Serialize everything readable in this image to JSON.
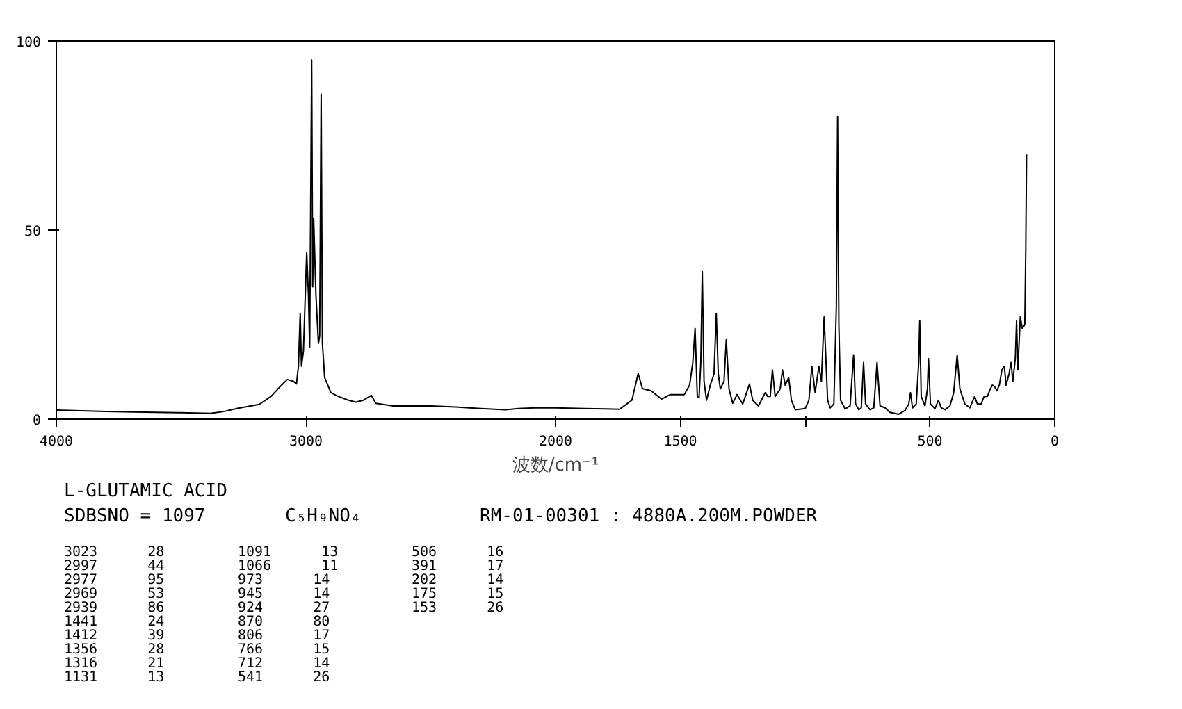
{
  "chart_data": {
    "type": "line",
    "title": "L-GLUTAMIC ACID",
    "xlabel": "波数/cm⁻¹",
    "xlim": [
      4000,
      0
    ],
    "ylim": [
      0,
      100
    ],
    "xticks": [
      4000,
      3000,
      2000,
      1500,
      {
        "value": 1000,
        "label": null
      },
      500,
      0
    ],
    "yticks": [
      0,
      50,
      100
    ],
    "series": [
      {
        "color": "#000000",
        "x": [
          4000,
          3900,
          3800,
          3690,
          3600,
          3500,
          3383,
          3330,
          3271,
          3187,
          3140,
          3102,
          3074,
          3050,
          3038,
          3030,
          3023,
          3018,
          3010,
          2997,
          2990,
          2985,
          2977,
          2973,
          2969,
          2960,
          2950,
          2945,
          2939,
          2934,
          2925,
          2900,
          2870,
          2830,
          2800,
          2770,
          2738,
          2720,
          2650,
          2500,
          2400,
          2300,
          2200,
          2150,
          2080,
          2000,
          1885,
          1800,
          1744,
          1694,
          1669,
          1652,
          1617,
          1575,
          1540,
          1484,
          1463,
          1450,
          1441,
          1432,
          1425,
          1418,
          1412,
          1405,
          1395,
          1380,
          1365,
          1356,
          1348,
          1340,
          1325,
          1316,
          1305,
          1290,
          1273,
          1250,
          1223,
          1210,
          1187,
          1160,
          1150,
          1140,
          1131,
          1120,
          1100,
          1091,
          1080,
          1066,
          1055,
          1040,
          1000,
          985,
          973,
          960,
          945,
          935,
          924,
          910,
          900,
          885,
          875,
          870,
          865,
          858,
          840,
          820,
          806,
          798,
          785,
          775,
          766,
          758,
          740,
          725,
          712,
          700,
          680,
          660,
          625,
          600,
          585,
          578,
          570,
          555,
          545,
          541,
          535,
          520,
          510,
          506,
          498,
          480,
          466,
          455,
          440,
          420,
          405,
          391,
          380,
          360,
          340,
          321,
          310,
          295,
          283,
          270,
          258,
          250,
          240,
          232,
          222,
          212,
          202,
          195,
          183,
          175,
          168,
          158,
          153,
          148,
          138,
          130,
          120,
          116,
          113
        ],
        "values": [
          2.4,
          2.2,
          2.0,
          1.9,
          1.8,
          1.7,
          1.5,
          2.0,
          2.9,
          3.9,
          6,
          8.7,
          10.5,
          10,
          9.3,
          14,
          28,
          14,
          18,
          44,
          33,
          19,
          95,
          35,
          53,
          33,
          20,
          22,
          86,
          20,
          11,
          7,
          6,
          5,
          4.5,
          5,
          6.3,
          4.2,
          3.5,
          3.5,
          3.2,
          2.8,
          2.5,
          2.8,
          3,
          3,
          2.8,
          2.7,
          2.6,
          5,
          12.1,
          8.1,
          7.5,
          5.3,
          6.5,
          6.5,
          9,
          15,
          24,
          6,
          5.7,
          15,
          39,
          10,
          5,
          9,
          12,
          28,
          12,
          8,
          10,
          21,
          8,
          4.2,
          6.5,
          4,
          9.3,
          5,
          3.5,
          7,
          6,
          6,
          13,
          6,
          8,
          13,
          9,
          11,
          5,
          2.5,
          2.8,
          5,
          14,
          7,
          14,
          10,
          27,
          5,
          3,
          4,
          30,
          80,
          25,
          5,
          2.7,
          3.5,
          17,
          4,
          2.5,
          3,
          15,
          4,
          2.5,
          3,
          15,
          3.5,
          3,
          1.8,
          1.3,
          2.3,
          4,
          7,
          3,
          4,
          15,
          26,
          6,
          3.5,
          8,
          16,
          4,
          2.8,
          5,
          3,
          2.5,
          3.5,
          7,
          17,
          8,
          4,
          3,
          6,
          4,
          4,
          6,
          6,
          8,
          9,
          8.5,
          7.5,
          9,
          13,
          14,
          9,
          12,
          15,
          10,
          16,
          26,
          13,
          27,
          24,
          25,
          46,
          70
        ]
      }
    ],
    "annotations": [
      "SDBSNO = 1097",
      "C₅H₉NO₄",
      "RM-01-00301 : 4880A.200M.POWDER",
      "3023 28",
      "2997 44",
      "2977 95",
      "2969 53",
      "2939 86",
      "1441 24",
      "1412 39",
      "1356 28",
      "1316 21",
      "1131 13",
      "1091 13",
      "1066 11",
      "973 14",
      "945 14",
      "924 27",
      "870 80",
      "806 17",
      "766 15",
      "712 14",
      "541 26",
      "506 16",
      "391 17",
      "202 14",
      "175 15",
      "153 26"
    ]
  }
}
